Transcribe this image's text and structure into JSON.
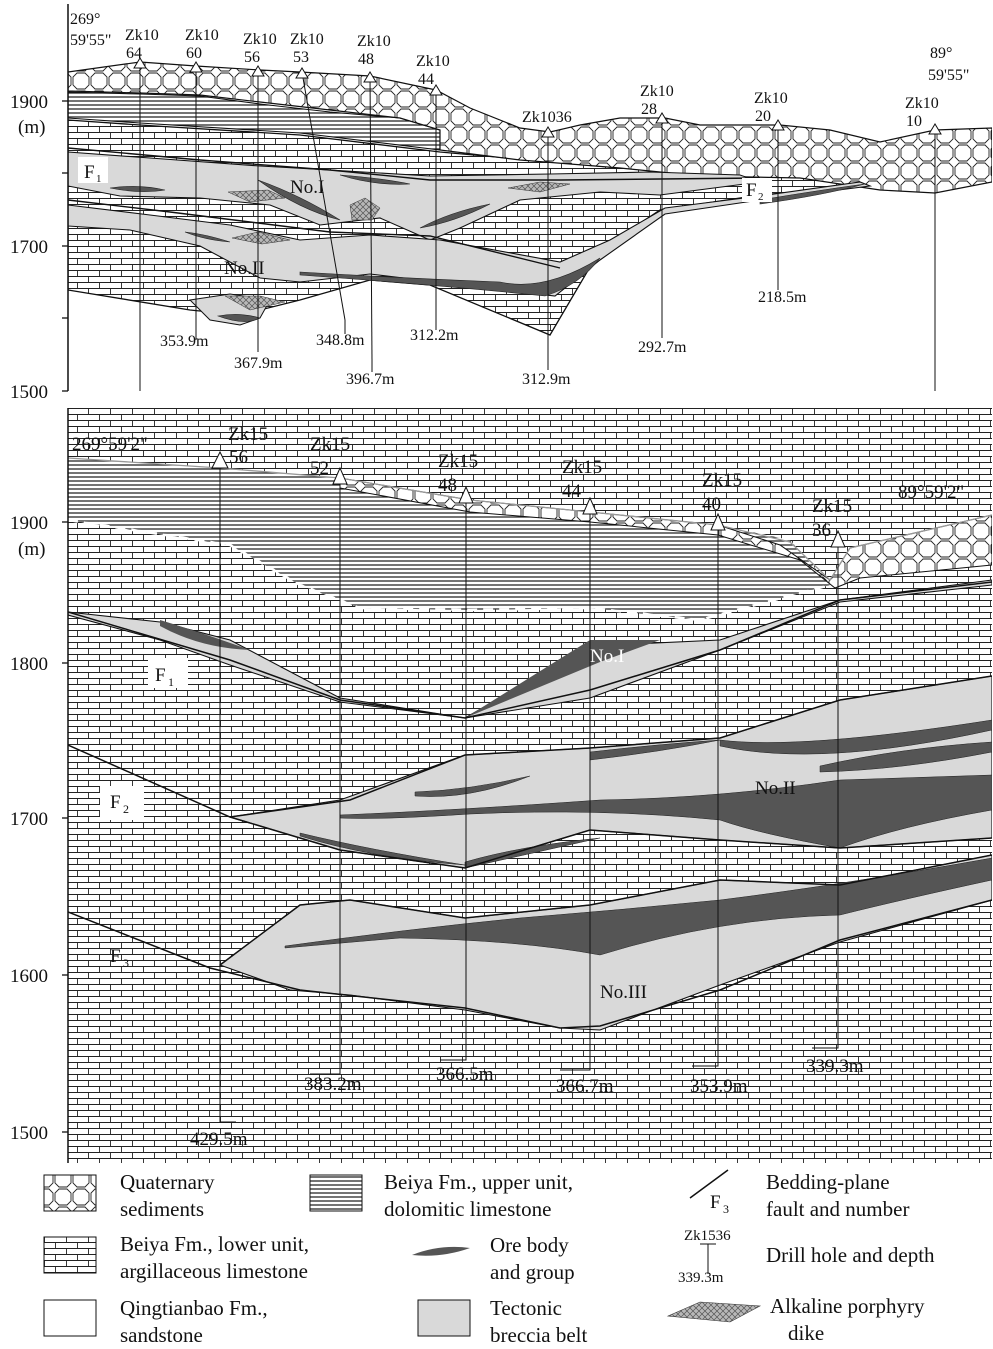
{
  "colors": {
    "ink": "#111111",
    "breccia": "#d9d9d9",
    "ore": "#555555",
    "dike": "#888888",
    "background": "#ffffff"
  },
  "icons": {
    "quaternary": "hexagon-pattern",
    "lower_unit": "brick-pattern",
    "upper_unit": "horizontal-stripe-pattern",
    "sandstone": "blank",
    "breccia": "gray-fill",
    "ore": "dark-lens",
    "dike": "crosshatch-lens",
    "fault": "diagonal-line",
    "drill": "triangle-marker"
  },
  "section_top": {
    "left_azimuth_a": "269°",
    "left_azimuth_b": "59'55\"",
    "right_azimuth_a": "89°",
    "right_azimuth_b": "59'55\"",
    "y_ticks": [
      "1900",
      "1700",
      "1500"
    ],
    "y_unit": "(m)",
    "faults": [
      {
        "main": "F",
        "sub": "1"
      },
      {
        "main": "F",
        "sub": "2"
      }
    ],
    "ore_groups": [
      "No.I",
      "No.II"
    ],
    "holes": [
      {
        "name_a": "Zk10",
        "name_b": "64",
        "depth": ""
      },
      {
        "name_a": "Zk10",
        "name_b": "60",
        "depth": "353.9m"
      },
      {
        "name_a": "Zk10",
        "name_b": "56",
        "depth": "367.9m"
      },
      {
        "name_a": "Zk10",
        "name_b": "53",
        "depth": "348.8m"
      },
      {
        "name_a": "Zk10",
        "name_b": "48",
        "depth": "396.7m"
      },
      {
        "name_a": "Zk10",
        "name_b": "44",
        "depth": "312.2m"
      },
      {
        "name_a": "Zk1036",
        "name_b": "",
        "depth": "312.9m"
      },
      {
        "name_a": "Zk10",
        "name_b": "28",
        "depth": "292.7m"
      },
      {
        "name_a": "Zk10",
        "name_b": "20",
        "depth": "218.5m"
      },
      {
        "name_a": "Zk10",
        "name_b": "10",
        "depth": ""
      }
    ]
  },
  "section_bottom": {
    "left_azimuth": "269°59'2\"",
    "right_azimuth": "89°59'2\"",
    "y_ticks": [
      "1900",
      "1800",
      "1700",
      "1600",
      "1500"
    ],
    "y_unit": "(m)",
    "faults": [
      {
        "main": "F",
        "sub": "1"
      },
      {
        "main": "F",
        "sub": "2"
      },
      {
        "main": "F",
        "sub": "3"
      }
    ],
    "ore_groups": [
      "No.I",
      "No.II",
      "No.III"
    ],
    "holes": [
      {
        "name_a": "Zk15",
        "name_b": "56",
        "depth": "429.5m"
      },
      {
        "name_a": "Zk15",
        "name_b": "52",
        "depth": "383.2m"
      },
      {
        "name_a": "Zk15",
        "name_b": "48",
        "depth": "366.5m"
      },
      {
        "name_a": "Zk15",
        "name_b": "44",
        "depth": "366.7m"
      },
      {
        "name_a": "Zk15",
        "name_b": "40",
        "depth": "353.9m"
      },
      {
        "name_a": "Zk15",
        "name_b": "36",
        "depth": "339.3m"
      }
    ]
  },
  "legend": {
    "quaternary_a": "Quaternary",
    "quaternary_b": "sediments",
    "upper_a": "Beiya Fm., upper unit,",
    "upper_b": "dolomitic limestone",
    "fault_sym": "F",
    "fault_sym_sub": "3",
    "fault_a": "Bedding-plane",
    "fault_b": "fault and number",
    "lower_a": "Beiya Fm., lower unit,",
    "lower_b": "argillaceous limestone",
    "ore_a": "Ore body",
    "ore_b": "and group",
    "drill_name": "Zk1536",
    "drill_depth": "339.3m",
    "drill_label": "Drill hole and depth",
    "sand_a": "Qingtianbao Fm.,",
    "sand_b": "sandstone",
    "breccia_a": "Tectonic",
    "breccia_b": "breccia belt",
    "dike_a": "Alkaline porphyry",
    "dike_b": "dike"
  }
}
